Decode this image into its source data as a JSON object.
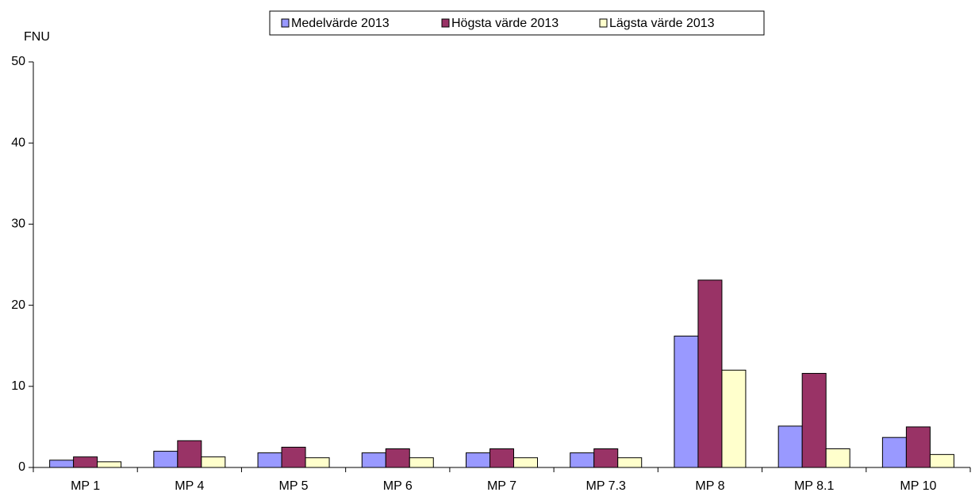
{
  "chart_data": {
    "type": "bar",
    "y_label": "FNU",
    "categories": [
      "MP 1",
      "MP 4",
      "MP 5",
      "MP 6",
      "MP 7",
      "MP 7.3",
      "MP 8",
      "MP 8.1",
      "MP 10"
    ],
    "series": [
      {
        "name": "Medelvärde 2013",
        "color": "#9999ff",
        "values": [
          0.9,
          2.0,
          1.8,
          1.8,
          1.8,
          1.8,
          16.2,
          5.1,
          3.7
        ]
      },
      {
        "name": "Högsta värde 2013",
        "color": "#993366",
        "values": [
          1.3,
          3.3,
          2.5,
          2.3,
          2.3,
          2.3,
          23.1,
          11.6,
          5.0
        ]
      },
      {
        "name": "Lägsta värde 2013",
        "color": "#ffffcc",
        "values": [
          0.7,
          1.3,
          1.2,
          1.2,
          1.2,
          1.2,
          12.0,
          2.3,
          1.6
        ]
      }
    ],
    "ylim": [
      0,
      50
    ],
    "yticks": [
      0,
      10,
      20,
      30,
      40,
      50
    ],
    "grid": false,
    "legend": "top"
  }
}
